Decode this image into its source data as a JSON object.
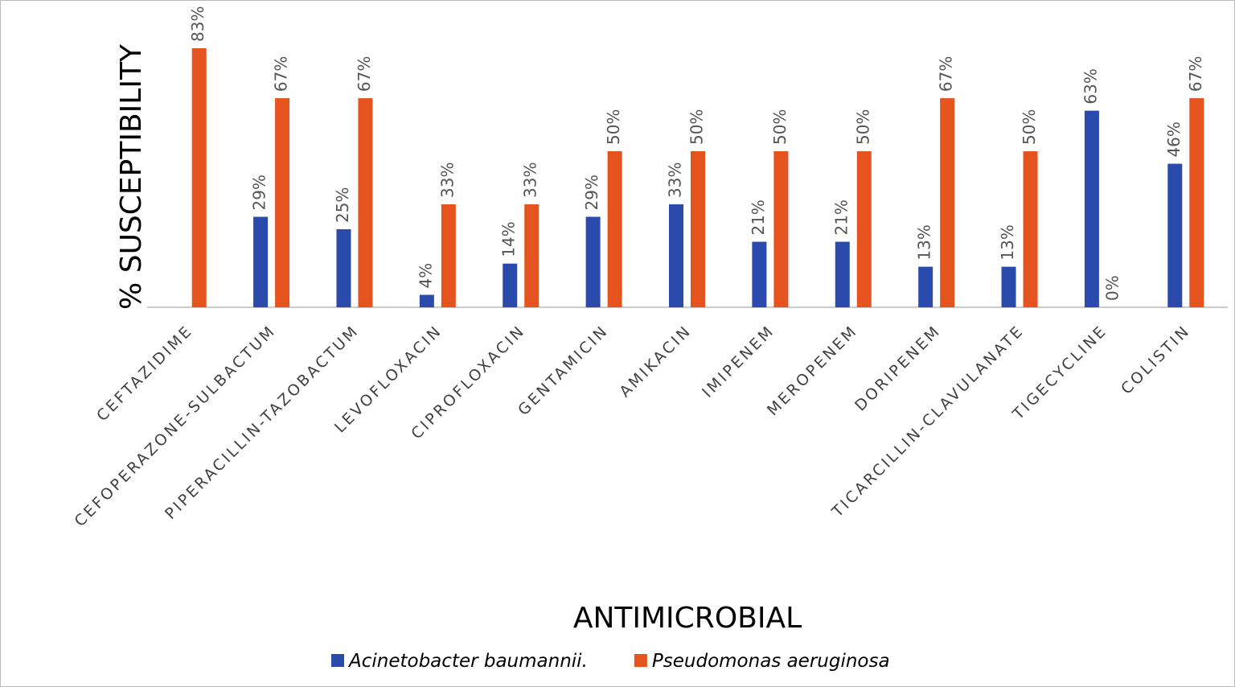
{
  "chart_data": {
    "type": "bar",
    "x_label": "ANTIMICROBIAL",
    "y_label": "% SUSCEPTIBILITY",
    "categories": [
      "CEFTAZIDIME",
      "CEFOPERAZONE-SULBACTUM",
      "PIPERACILLIN-TAZOBACTUM",
      "LEVOFLOXACIN",
      "CIPROFLOXACIN",
      "GENTAMICIN",
      "AMIKACIN",
      "IMIPENEM",
      "MEROPENEM",
      "DORIPENEM",
      "TICARCILLIN-CLAVULANATE",
      "TIGECYCLINE",
      "COLISTIN"
    ],
    "series": [
      {
        "name": "Acinetobacter baumannii.",
        "color": "#2a4bab",
        "values": [
          null,
          29,
          25,
          4,
          14,
          29,
          33,
          21,
          21,
          13,
          13,
          63,
          46
        ],
        "value_labels": [
          null,
          "29%",
          "25%",
          "4%",
          "14%",
          "29%",
          "33%",
          "21%",
          "21%",
          "13%",
          "13%",
          "63%",
          "46%"
        ]
      },
      {
        "name": "Pseudomonas aeruginosa",
        "color": "#e5541e",
        "values": [
          83,
          67,
          67,
          33,
          33,
          50,
          50,
          50,
          50,
          67,
          50,
          0,
          67
        ],
        "value_labels": [
          "83%",
          "67%",
          "67%",
          "33%",
          "33%",
          "50%",
          "50%",
          "50%",
          "50%",
          "67%",
          "50%",
          "0%",
          "67%"
        ]
      }
    ],
    "legend": "bottom"
  }
}
